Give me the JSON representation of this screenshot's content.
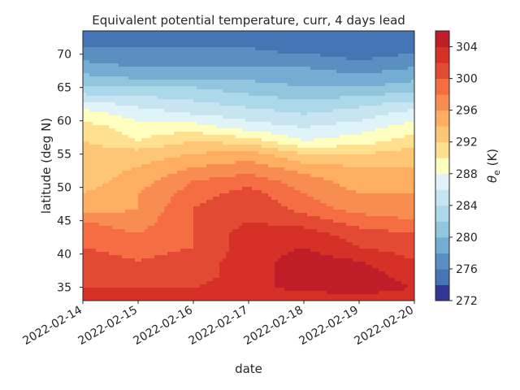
{
  "chart_data": {
    "type": "heatmap",
    "subtype": "filled-contour",
    "title": "Equivalent potential temperature, curr, 4 days lead",
    "xlabel": "date",
    "ylabel": "latitude (deg N)",
    "x_ticks": [
      "2022-02-14",
      "2022-02-15",
      "2022-02-16",
      "2022-02-17",
      "2022-02-18",
      "2022-02-19",
      "2022-02-20"
    ],
    "y_ticks": [
      35,
      40,
      45,
      50,
      55,
      60,
      65,
      70
    ],
    "xlim": [
      "2022-02-14",
      "2022-02-20"
    ],
    "ylim": [
      33,
      73.5
    ],
    "colorbar": {
      "label_prefix": "θ",
      "label_subscript": "e",
      "label_suffix": " (K)",
      "range": [
        272,
        306
      ],
      "levels": [
        272,
        274,
        276,
        278,
        280,
        282,
        284,
        286,
        288,
        290,
        292,
        294,
        296,
        298,
        300,
        302,
        304,
        306
      ],
      "ticks": [
        272,
        276,
        280,
        284,
        288,
        292,
        296,
        300,
        304
      ],
      "colormap": "RdYlBu_r",
      "colors": [
        "#313695",
        "#4575b4",
        "#5b8fc2",
        "#74add1",
        "#92c5de",
        "#abd9e9",
        "#c6e5f0",
        "#e0f3f8",
        "#ffffbf",
        "#fee090",
        "#fdc676",
        "#fdae61",
        "#f88d52",
        "#f46d43",
        "#e34a33",
        "#d73027",
        "#bf1d28",
        "#a50026"
      ]
    },
    "x": [
      "2022-02-14",
      "2022-02-15",
      "2022-02-16",
      "2022-02-17",
      "2022-02-18",
      "2022-02-19",
      "2022-02-20"
    ],
    "y": [
      33,
      35,
      37,
      39,
      41,
      43,
      45,
      47,
      49,
      51,
      53,
      55,
      57,
      59,
      61,
      63,
      65,
      67,
      69,
      71,
      73.5
    ],
    "z": [
      [
        302,
        302,
        302,
        302,
        302,
        303,
        303
      ],
      [
        302,
        302,
        302,
        303,
        305,
        305,
        304
      ],
      [
        302,
        301,
        301,
        303,
        305,
        305,
        303
      ],
      [
        301,
        300,
        301,
        303,
        305,
        304,
        302
      ],
      [
        300,
        299,
        300,
        303,
        304,
        302,
        301
      ],
      [
        299,
        298,
        300,
        303,
        303,
        301,
        300
      ],
      [
        298,
        297,
        300,
        302,
        301,
        299,
        298
      ],
      [
        294,
        296,
        300,
        302,
        299,
        297,
        297
      ],
      [
        294,
        296,
        299,
        301,
        298,
        296,
        296
      ],
      [
        293,
        295,
        298,
        299,
        297,
        295,
        295
      ],
      [
        293,
        294,
        296,
        297,
        295,
        294,
        294
      ],
      [
        293,
        293,
        294,
        295,
        292,
        292,
        293
      ],
      [
        292,
        290,
        292,
        291,
        288,
        289,
        291
      ],
      [
        291,
        289,
        289,
        287,
        286,
        287,
        289
      ],
      [
        289,
        287,
        286,
        285,
        284,
        285,
        287
      ],
      [
        286,
        285,
        284,
        283,
        282,
        283,
        284
      ],
      [
        282,
        282,
        282,
        281,
        280,
        280,
        281
      ],
      [
        280,
        279,
        279,
        279,
        279,
        278,
        279
      ],
      [
        278,
        277,
        277,
        277,
        277,
        276,
        277
      ],
      [
        276,
        276,
        276,
        276,
        275,
        275,
        275
      ],
      [
        275,
        275,
        275,
        275,
        274,
        274,
        274
      ]
    ]
  }
}
